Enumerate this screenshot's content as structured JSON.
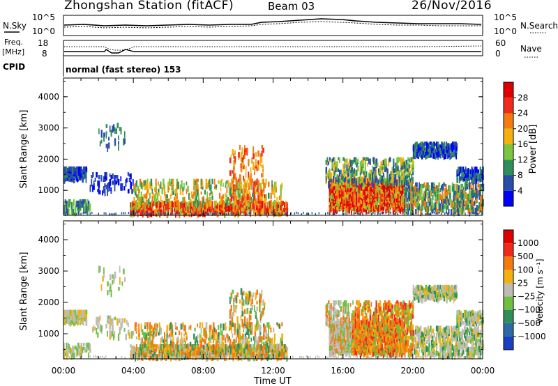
{
  "header": {
    "station": "Zhongshan Station (fitACF)",
    "beam": "Beam 03",
    "date": "26/Nov/2016"
  },
  "top_panels": {
    "nsky_label": "N.Sky",
    "nsearch_label": "N.Search",
    "noise_ticks_left": [
      "10^5",
      "10^0"
    ],
    "noise_ticks_right": [
      "10^5",
      "10^0"
    ],
    "freq_label_1": "Freq.",
    "freq_label_2": "[MHz]",
    "freq_ticks": [
      "18",
      "8"
    ],
    "nave_ticks": [
      "60",
      "0"
    ],
    "nave_label": "Nave",
    "cpid_label": "CPID",
    "cpid_text": "normal (fast stereo) 153"
  },
  "chart_data": [
    {
      "type": "heatmap",
      "title": "",
      "ylabel": "Slant Range [km]",
      "xlabel": "",
      "x_ticks": [
        "00:00",
        "04:00",
        "08:00",
        "12:00",
        "16:00",
        "20:00",
        "00:00"
      ],
      "y_ticks": [
        "1000",
        "2000",
        "3000",
        "4000"
      ],
      "ylim": [
        200,
        4600
      ],
      "colorbar_label": "Power [dB]",
      "colorbar_ticks": [
        "4",
        "8",
        "12",
        "16",
        "20",
        "24",
        "28"
      ],
      "colors": [
        "#0000ff",
        "#2a4da8",
        "#2f8f5a",
        "#7cc63f",
        "#f2b10f",
        "#f47a10",
        "#ef2a1a",
        "#e10000"
      ]
    },
    {
      "type": "heatmap",
      "title": "",
      "ylabel": "Slant Range [km]",
      "xlabel": "Time UT",
      "x_ticks": [
        "00:00",
        "04:00",
        "08:00",
        "12:00",
        "16:00",
        "20:00",
        "00:00"
      ],
      "y_ticks": [
        "1000",
        "2000",
        "3000",
        "4000"
      ],
      "ylim": [
        200,
        4600
      ],
      "colorbar_label": "Velocity [m s⁻¹]",
      "colorbar_ticks": [
        "1000",
        "500",
        "100",
        "25",
        "−25",
        "−100",
        "−500",
        "−1000"
      ],
      "colors": [
        "#1a3fc0",
        "#2d6ba8",
        "#2f8f5a",
        "#6fc040",
        "#bdbdb5",
        "#f2b10f",
        "#f47a10",
        "#ef2a1a",
        "#e10000"
      ]
    }
  ]
}
